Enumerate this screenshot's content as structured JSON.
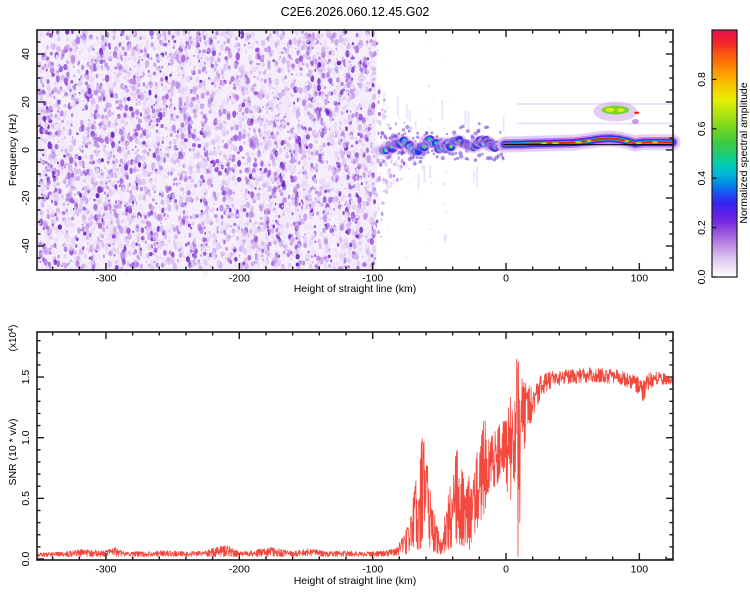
{
  "title": "C2E6.2026.060.12.45.G02",
  "chart_data": [
    {
      "type": "heatmap",
      "name": "spectrogram",
      "xlabel": "Height of straight line (km)",
      "ylabel": "Frequency (Hz)",
      "xlim": [
        -352,
        125
      ],
      "ylim": [
        -50,
        50
      ],
      "xticks": [
        -300,
        -200,
        -100,
        0,
        100
      ],
      "xtick_minor_step": 20,
      "yticks": [
        40,
        20,
        0,
        -20,
        -40
      ],
      "ytick_minor_step": 5,
      "colorbar": {
        "label": "Normalized spectral amplitude",
        "range": [
          0,
          1
        ],
        "ticks": [
          0.0,
          0.2,
          0.4,
          0.6,
          0.8
        ],
        "stops": [
          [
            0.0,
            "#ffffff"
          ],
          [
            0.03,
            "#f3e9fa"
          ],
          [
            0.08,
            "#ddc3f0"
          ],
          [
            0.13,
            "#bd8ce4"
          ],
          [
            0.18,
            "#9a55dd"
          ],
          [
            0.22,
            "#7a2ee0"
          ],
          [
            0.26,
            "#5b1fe8"
          ],
          [
            0.3,
            "#3326ee"
          ],
          [
            0.34,
            "#1950f0"
          ],
          [
            0.38,
            "#008ce8"
          ],
          [
            0.42,
            "#00b8d8"
          ],
          [
            0.46,
            "#00cfae"
          ],
          [
            0.5,
            "#20cc70"
          ],
          [
            0.55,
            "#3ecb3e"
          ],
          [
            0.6,
            "#72d622"
          ],
          [
            0.66,
            "#abe312"
          ],
          [
            0.72,
            "#e8ef00"
          ],
          [
            0.78,
            "#f8c400"
          ],
          [
            0.84,
            "#ff9100"
          ],
          [
            0.9,
            "#fb5a0e"
          ],
          [
            0.95,
            "#f1252b"
          ],
          [
            1.0,
            "#e8104b"
          ]
        ]
      },
      "noise_region": {
        "x_range_km": [
          -352,
          -97
        ],
        "freq_range_hz": [
          -50,
          50
        ],
        "amplitude_range": [
          0,
          0.25
        ]
      },
      "signal_band": {
        "onset_km": -92,
        "carrier_freq_hz": 2.8,
        "blob_region_km": [
          -92,
          -1
        ],
        "tight_band_km": [
          -1,
          125
        ],
        "bump_region_km": [
          70,
          95
        ],
        "core_amplitude": 1.0,
        "blob_centerline": [
          [
            -92,
            1.0
          ],
          [
            -85,
            3.0
          ],
          [
            -78,
            1.5
          ],
          [
            -72,
            2.6
          ],
          [
            -65,
            0.8
          ],
          [
            -58,
            3.0
          ],
          [
            -52,
            1.8
          ],
          [
            -45,
            3.0
          ],
          [
            -38,
            1.8
          ],
          [
            -33,
            2.6
          ],
          [
            -25,
            2.2
          ],
          [
            -15,
            2.6
          ],
          [
            -5,
            2.4
          ],
          [
            -1,
            2.3
          ]
        ],
        "tight_centerline": [
          [
            -1,
            2.3
          ],
          [
            10,
            2.4
          ],
          [
            25,
            2.7
          ],
          [
            40,
            2.9
          ],
          [
            52,
            3.1
          ],
          [
            62,
            3.8
          ],
          [
            70,
            4.5
          ],
          [
            78,
            4.8
          ],
          [
            85,
            4.4
          ],
          [
            92,
            3.5
          ],
          [
            97,
            2.7
          ],
          [
            103,
            3.2
          ],
          [
            110,
            3.2
          ],
          [
            125,
            3.2
          ]
        ]
      },
      "fit_line": {
        "freq_hz": 2.2,
        "x_range_km": [
          -2,
          125
        ],
        "color": "#000000"
      }
    },
    {
      "type": "line",
      "name": "snr",
      "xlabel": "Height of straight line (km)",
      "ylabel": "SNR (10 * v/v)",
      "y_scale_label": "(x10^4)",
      "xlim": [
        -352,
        125
      ],
      "ylim": [
        0,
        1.87
      ],
      "xticks": [
        -300,
        -200,
        -100,
        0,
        100
      ],
      "xtick_minor_step": 20,
      "yticks": [
        0.0,
        0.5,
        1.0,
        1.5
      ],
      "ytick_minor_step": 0.1,
      "color": "#f3392f",
      "envelope": [
        [
          -352,
          0.02,
          0.05
        ],
        [
          -330,
          0.02,
          0.06
        ],
        [
          -318,
          0.02,
          0.08
        ],
        [
          -300,
          0.02,
          0.07
        ],
        [
          -293,
          0.02,
          0.1
        ],
        [
          -285,
          0.02,
          0.06
        ],
        [
          -270,
          0.02,
          0.06
        ],
        [
          -255,
          0.02,
          0.07
        ],
        [
          -240,
          0.02,
          0.06
        ],
        [
          -225,
          0.02,
          0.07
        ],
        [
          -210,
          0.02,
          0.12
        ],
        [
          -200,
          0.02,
          0.06
        ],
        [
          -190,
          0.02,
          0.07
        ],
        [
          -175,
          0.02,
          0.1
        ],
        [
          -160,
          0.02,
          0.06
        ],
        [
          -148,
          0.02,
          0.09
        ],
        [
          -135,
          0.02,
          0.06
        ],
        [
          -120,
          0.02,
          0.07
        ],
        [
          -110,
          0.02,
          0.06
        ],
        [
          -100,
          0.02,
          0.06
        ],
        [
          -90,
          0.02,
          0.07
        ],
        [
          -82,
          0.03,
          0.09
        ],
        [
          -76,
          0.04,
          0.22
        ],
        [
          -71,
          0.05,
          0.45
        ],
        [
          -66,
          0.07,
          0.75
        ],
        [
          -62,
          0.1,
          1.12
        ],
        [
          -59,
          0.08,
          0.85
        ],
        [
          -56,
          0.06,
          0.5
        ],
        [
          -52,
          0.05,
          0.3
        ],
        [
          -49,
          0.04,
          0.15
        ],
        [
          -46,
          0.05,
          0.35
        ],
        [
          -43,
          0.08,
          0.55
        ],
        [
          -40,
          0.1,
          0.75
        ],
        [
          -37,
          0.12,
          0.97
        ],
        [
          -34,
          0.12,
          0.8
        ],
        [
          -31,
          0.1,
          0.65
        ],
        [
          -28,
          0.08,
          0.7
        ],
        [
          -25,
          0.06,
          0.6
        ],
        [
          -22,
          0.25,
          0.87
        ],
        [
          -19,
          0.3,
          1.0
        ],
        [
          -16,
          0.3,
          1.2
        ],
        [
          -13,
          0.45,
          1.0
        ],
        [
          -10,
          0.55,
          1.05
        ],
        [
          -7,
          0.6,
          1.08
        ],
        [
          -4,
          0.7,
          1.12
        ],
        [
          -1,
          0.72,
          1.15
        ],
        [
          2,
          0.4,
          1.25
        ],
        [
          5,
          0.55,
          1.45
        ],
        [
          7,
          0.5,
          1.86
        ],
        [
          8,
          0.6,
          1.87
        ],
        [
          9,
          0.02,
          1.87
        ],
        [
          10,
          0.02,
          1.3
        ],
        [
          11,
          0.6,
          1.55
        ],
        [
          13,
          0.85,
          1.5
        ],
        [
          15,
          1.0,
          1.45
        ],
        [
          18,
          1.1,
          1.42
        ],
        [
          22,
          1.22,
          1.46
        ],
        [
          27,
          1.35,
          1.52
        ],
        [
          35,
          1.42,
          1.55
        ],
        [
          45,
          1.44,
          1.56
        ],
        [
          55,
          1.45,
          1.57
        ],
        [
          65,
          1.46,
          1.58
        ],
        [
          75,
          1.45,
          1.57
        ],
        [
          85,
          1.44,
          1.56
        ],
        [
          95,
          1.4,
          1.52
        ],
        [
          100,
          1.34,
          1.5
        ],
        [
          103,
          1.3,
          1.47
        ],
        [
          107,
          1.4,
          1.53
        ],
        [
          112,
          1.44,
          1.55
        ],
        [
          118,
          1.44,
          1.53
        ],
        [
          125,
          1.44,
          1.51
        ]
      ]
    }
  ]
}
